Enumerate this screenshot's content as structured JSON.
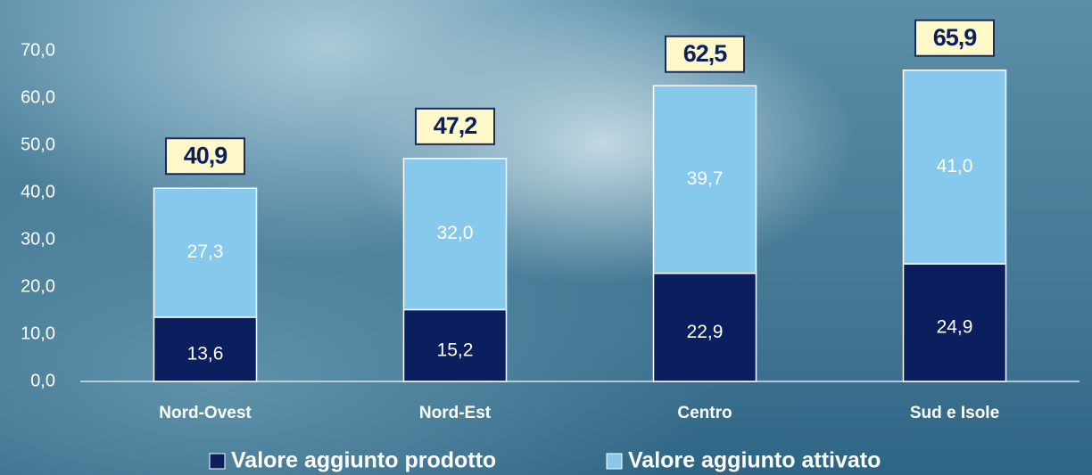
{
  "chart_data": {
    "type": "stacked_bar",
    "categories": [
      "Nord-Ovest",
      "Nord-Est",
      "Centro",
      "Sud e Isole"
    ],
    "series": [
      {
        "name": "Valore aggiunto prodotto",
        "color": "#0b1f5e",
        "values": [
          13.6,
          15.2,
          22.9,
          24.9
        ],
        "value_labels": [
          "13,6",
          "15,2",
          "22,9",
          "24,9"
        ]
      },
      {
        "name": "Valore aggiunto attivato",
        "color": "#86c9ec",
        "values": [
          27.3,
          32.0,
          39.7,
          41.0
        ],
        "value_labels": [
          "27,3",
          "32,0",
          "39,7",
          "41,0"
        ]
      }
    ],
    "totals": [
      40.9,
      47.2,
      62.5,
      65.9
    ],
    "totals_labels": [
      "40,9",
      "47,2",
      "62,5",
      "65,9"
    ],
    "ylim": [
      0,
      70
    ],
    "yticks": [
      {
        "value": 0,
        "label": "0,0"
      },
      {
        "value": 10,
        "label": "10,0"
      },
      {
        "value": 20,
        "label": "20,0"
      },
      {
        "value": 30,
        "label": "30,0"
      },
      {
        "value": 40,
        "label": "40,0"
      },
      {
        "value": 50,
        "label": "50,0"
      },
      {
        "value": 60,
        "label": "60,0"
      },
      {
        "value": 70,
        "label": "70,0"
      }
    ],
    "legend": "bottom"
  }
}
